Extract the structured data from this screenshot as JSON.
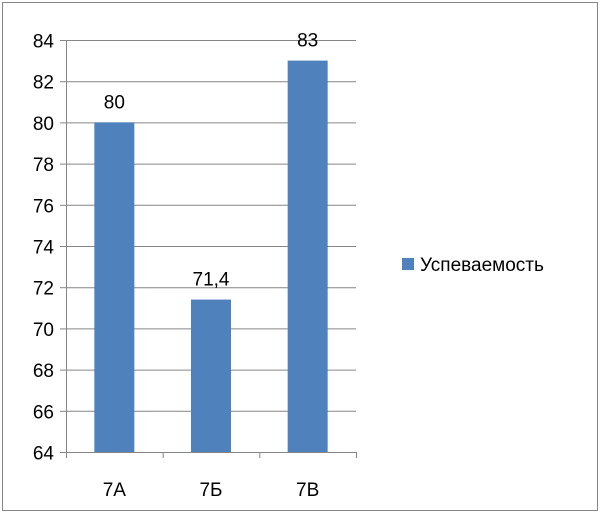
{
  "chart_data": {
    "type": "bar",
    "categories": [
      "7А",
      "7Б",
      "7В"
    ],
    "series": [
      {
        "name": "Успеваемость",
        "values": [
          80,
          71.4,
          83
        ],
        "value_labels": [
          "80",
          "71,4",
          "83"
        ],
        "color": "#4f81bd"
      }
    ],
    "ylim": [
      64,
      84
    ],
    "yticks": [
      64,
      66,
      68,
      70,
      72,
      74,
      76,
      78,
      80,
      82,
      84
    ],
    "grid": true,
    "legend_position": "right"
  },
  "colors": {
    "frame": "#868686",
    "axis": "#868686",
    "grid": "#868686",
    "bar": "#4f81bd"
  }
}
